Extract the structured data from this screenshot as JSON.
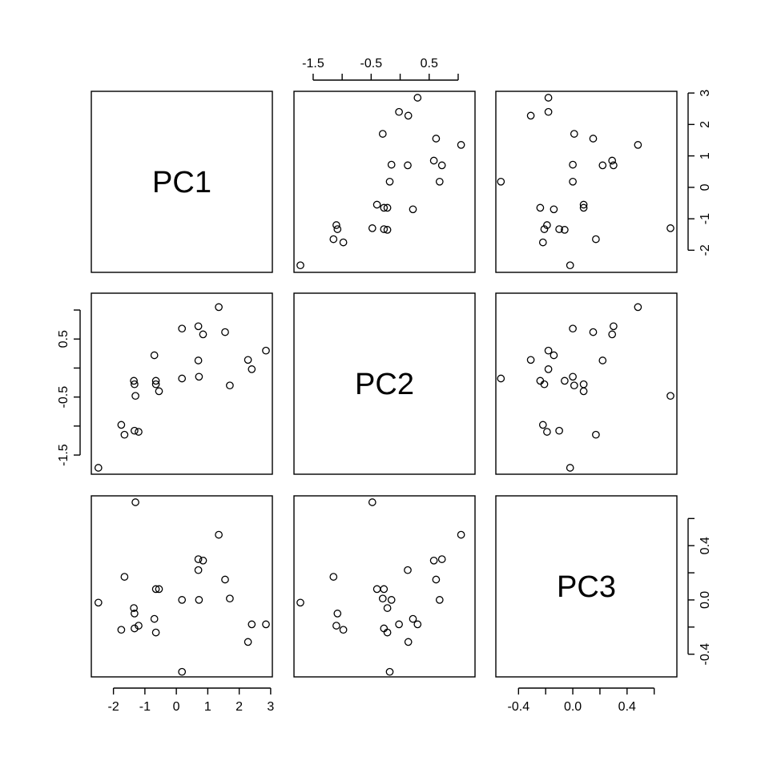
{
  "chart_data": {
    "type": "scatter",
    "chart_kind": "scatterplot-matrix",
    "title": "",
    "variables": [
      "PC1",
      "PC2",
      "PC3"
    ],
    "axes": {
      "PC1": {
        "ticks": [
          -2,
          -1,
          0,
          1,
          2,
          3
        ],
        "tick_labels": [
          "-2",
          "-1",
          "0",
          "1",
          "2",
          "3"
        ],
        "range": [
          -2.5,
          2.85
        ]
      },
      "PC2": {
        "ticks": [
          -1.5,
          -1,
          -0.5,
          0,
          0.5,
          1
        ],
        "tick_labels": [
          "-1.5",
          "",
          "-0.5",
          "",
          "0.5",
          ""
        ],
        "range": [
          -1.72,
          1.18
        ]
      },
      "PC3": {
        "ticks": [
          -0.4,
          -0.2,
          0.0,
          0.2,
          0.4,
          0.6
        ],
        "tick_labels": [
          "-0.4",
          "",
          "0.0",
          "",
          "0.4",
          ""
        ],
        "range": [
          -0.52,
          0.72
        ]
      }
    },
    "axis_labels_shown": {
      "top": "PC2",
      "right_top": "PC1",
      "left_middle": "PC2",
      "right_bottom": "PC3",
      "bottom_left": "PC1",
      "bottom_right": "PC3"
    },
    "observations": [
      {
        "PC1": -2.48,
        "PC2": -1.72,
        "PC3": -0.02
      },
      {
        "PC1": -1.75,
        "PC2": -0.98,
        "PC3": -0.22
      },
      {
        "PC1": -1.65,
        "PC2": -1.15,
        "PC3": 0.17
      },
      {
        "PC1": -1.35,
        "PC2": -0.22,
        "PC3": -0.06
      },
      {
        "PC1": -1.33,
        "PC2": -0.28,
        "PC3": -0.21
      },
      {
        "PC1": -1.33,
        "PC2": -1.08,
        "PC3": -0.1
      },
      {
        "PC1": -1.3,
        "PC2": -0.48,
        "PC3": 0.72
      },
      {
        "PC1": -1.2,
        "PC2": -1.1,
        "PC3": -0.19
      },
      {
        "PC1": -0.7,
        "PC2": 0.22,
        "PC3": -0.14
      },
      {
        "PC1": -0.65,
        "PC2": -0.28,
        "PC3": 0.08
      },
      {
        "PC1": -0.65,
        "PC2": -0.22,
        "PC3": -0.24
      },
      {
        "PC1": -0.55,
        "PC2": -0.4,
        "PC3": 0.08
      },
      {
        "PC1": 0.18,
        "PC2": 0.68,
        "PC3": 0.0
      },
      {
        "PC1": 0.18,
        "PC2": -0.18,
        "PC3": -0.53
      },
      {
        "PC1": 0.7,
        "PC2": 0.13,
        "PC3": 0.22
      },
      {
        "PC1": 0.7,
        "PC2": 0.72,
        "PC3": 0.3
      },
      {
        "PC1": 0.72,
        "PC2": -0.15,
        "PC3": 0.0
      },
      {
        "PC1": 0.85,
        "PC2": 0.58,
        "PC3": 0.29
      },
      {
        "PC1": 1.35,
        "PC2": 1.05,
        "PC3": 0.48
      },
      {
        "PC1": 1.55,
        "PC2": 0.62,
        "PC3": 0.15
      },
      {
        "PC1": 1.7,
        "PC2": -0.3,
        "PC3": 0.01
      },
      {
        "PC1": 2.28,
        "PC2": 0.14,
        "PC3": -0.31
      },
      {
        "PC1": 2.4,
        "PC2": -0.02,
        "PC3": -0.18
      },
      {
        "PC1": 2.85,
        "PC2": 0.3,
        "PC3": -0.18
      }
    ]
  }
}
